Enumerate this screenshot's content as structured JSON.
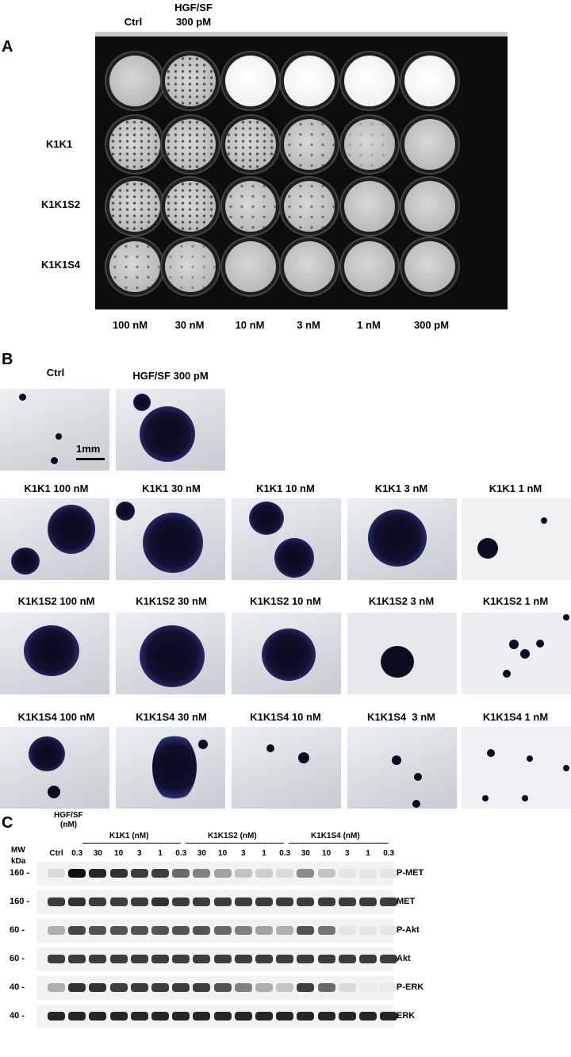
{
  "panelA": {
    "letter": "A",
    "top_labels": {
      "ctrl": "Ctrl",
      "hgf_line1": "HGF/SF",
      "hgf_line2": "300 pM"
    },
    "row_labels": [
      "K1K1",
      "K1K1S2",
      "K1K1S4"
    ],
    "column_labels": [
      "100 nM",
      "30 nM",
      "10 nM",
      "3 nM",
      "1 nM",
      "300 pM"
    ]
  },
  "panelB": {
    "letter": "B",
    "ctrl_label": "Ctrl",
    "hgf_label": "HGF/SF 300 pM",
    "scale_label": "1mm",
    "rows": [
      [
        "K1K1 100 nM",
        "K1K1 30 nM",
        "K1K1 10 nM",
        "K1K1 3 nM",
        "K1K1 1 nM"
      ],
      [
        "K1K1S2 100 nM",
        "K1K1S2 30 nM",
        "K1K1S2 10 nM",
        "K1K1S2 3 nM",
        "K1K1S2 1 nM"
      ],
      [
        "K1K1S4 100 nM",
        "K1K1S4 30 nM",
        "K1K1S4 10 nM",
        "K1K1S4  3 nM",
        "K1K1S4 1 nM"
      ]
    ]
  },
  "panelC": {
    "letter": "C",
    "hgf_header": [
      "HGF/SF",
      "(nM)"
    ],
    "group_headers": [
      "K1K1 (nM)",
      "K1K1S2 (nM)",
      "K1K1S4 (nM)"
    ],
    "mw_label": "MW",
    "kda_label": "kDa",
    "lanes": [
      "Ctrl",
      "0.3",
      "30",
      "10",
      "3",
      "1",
      "0.3",
      "30",
      "10",
      "3",
      "1",
      "0.3",
      "30",
      "10",
      "3",
      "1",
      "0.3"
    ],
    "blots": [
      {
        "mw": "160 -",
        "name": "P-MET",
        "intensity": [
          0.1,
          1,
          0.9,
          0.85,
          0.8,
          0.8,
          0.6,
          0.5,
          0.35,
          0.2,
          0.15,
          0.1,
          0.45,
          0.2,
          0.05,
          0.05,
          0.05
        ]
      },
      {
        "mw": "160 -",
        "name": "MET",
        "intensity": [
          0.8,
          0.85,
          0.8,
          0.8,
          0.8,
          0.85,
          0.8,
          0.8,
          0.8,
          0.8,
          0.8,
          0.8,
          0.8,
          0.8,
          0.8,
          0.8,
          0.8
        ]
      },
      {
        "mw": "60 -",
        "name": "P-Akt",
        "intensity": [
          0.3,
          0.75,
          0.7,
          0.7,
          0.7,
          0.7,
          0.7,
          0.7,
          0.6,
          0.5,
          0.35,
          0.3,
          0.7,
          0.55,
          0.05,
          0.05,
          0.05
        ]
      },
      {
        "mw": "60 -",
        "name": "Akt",
        "intensity": [
          0.8,
          0.8,
          0.8,
          0.8,
          0.8,
          0.8,
          0.8,
          0.8,
          0.8,
          0.8,
          0.8,
          0.8,
          0.8,
          0.8,
          0.8,
          0.8,
          0.8
        ]
      },
      {
        "mw": "40 -",
        "name": "P-ERK",
        "intensity": [
          0.3,
          0.85,
          0.85,
          0.8,
          0.8,
          0.8,
          0.8,
          0.8,
          0.7,
          0.5,
          0.3,
          0.2,
          0.8,
          0.6,
          0.1,
          0.03,
          0.03
        ]
      },
      {
        "mw": "40 -",
        "name": "ERK",
        "intensity": [
          0.9,
          0.9,
          0.9,
          0.9,
          0.9,
          0.9,
          0.9,
          0.9,
          0.9,
          0.9,
          0.9,
          0.9,
          0.9,
          0.9,
          0.9,
          0.9,
          0.9
        ]
      }
    ]
  }
}
